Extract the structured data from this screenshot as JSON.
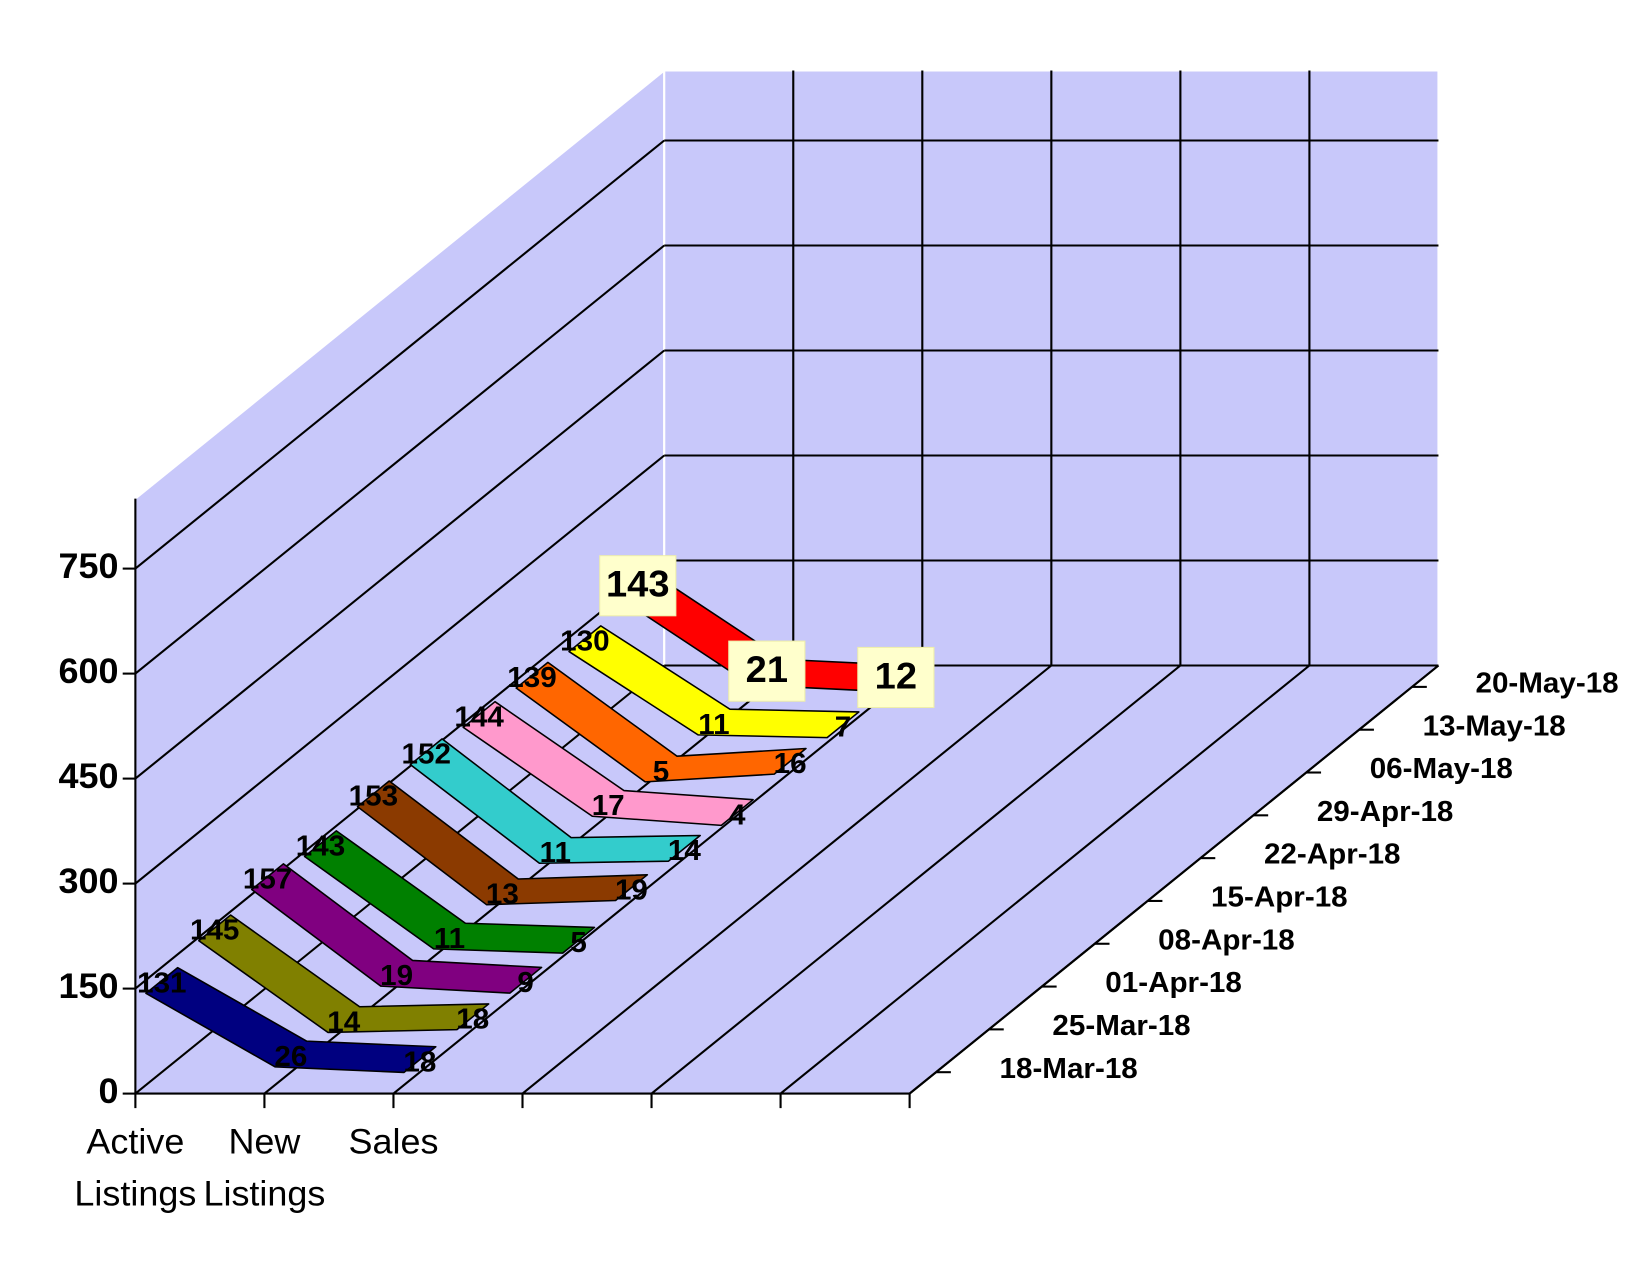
{
  "chart_data": {
    "type": "line3d",
    "categories": [
      "Active Listings",
      "New Listings",
      "Sales"
    ],
    "series": [
      {
        "name": "18-Mar-18",
        "color": "#000080",
        "values": [
          131,
          26,
          18
        ]
      },
      {
        "name": "25-Mar-18",
        "color": "#808000",
        "values": [
          145,
          14,
          18
        ]
      },
      {
        "name": "01-Apr-18",
        "color": "#800080",
        "values": [
          157,
          19,
          9
        ]
      },
      {
        "name": "08-Apr-18",
        "color": "#008000",
        "values": [
          143,
          11,
          5
        ]
      },
      {
        "name": "15-Apr-18",
        "color": "#8b3a00",
        "values": [
          153,
          13,
          19
        ]
      },
      {
        "name": "22-Apr-18",
        "color": "#33cccc",
        "values": [
          152,
          11,
          14
        ]
      },
      {
        "name": "29-Apr-18",
        "color": "#ff99cc",
        "values": [
          144,
          17,
          4
        ]
      },
      {
        "name": "06-May-18",
        "color": "#ff6600",
        "values": [
          139,
          5,
          16
        ]
      },
      {
        "name": "13-May-18",
        "color": "#ffff00",
        "values": [
          130,
          11,
          7
        ]
      },
      {
        "name": "20-May-18",
        "color": "#ff0000",
        "values": [
          143,
          21,
          12
        ]
      }
    ],
    "ylim": [
      0,
      850
    ],
    "yticks": [
      0,
      150,
      300,
      450,
      600,
      750
    ],
    "grid": true,
    "wall_color": "#c8c8fa"
  }
}
